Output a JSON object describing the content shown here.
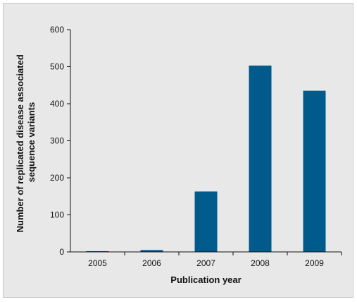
{
  "chart_data": {
    "type": "bar",
    "categories": [
      "2005",
      "2006",
      "2007",
      "2008",
      "2009"
    ],
    "values": [
      2,
      5,
      163,
      503,
      435
    ],
    "xlabel": "Publication year",
    "ylabel_lines": [
      "Number of replicated disease associated",
      "sequence variants"
    ],
    "ylim": [
      0,
      600
    ],
    "yticks": [
      "0",
      "100",
      "200",
      "300",
      "400",
      "500",
      "600"
    ],
    "bar_color": "#005a8c",
    "grid": false,
    "legend": "none"
  }
}
